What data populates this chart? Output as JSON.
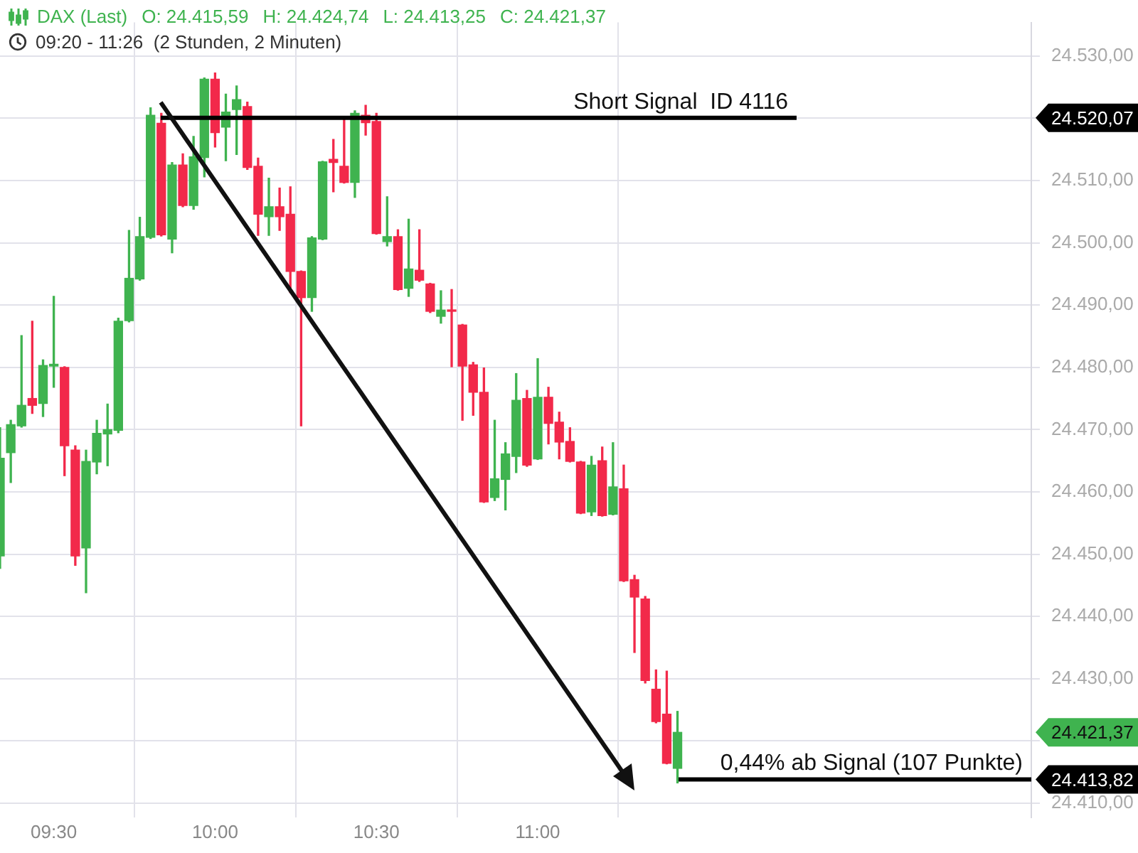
{
  "chart_data": {
    "type": "candlestick",
    "title": "DAX (Last)",
    "subtitle": "09:20 - 11:26  (2 Stunden, 2 Minuten)",
    "annotations": [
      "O: 24.415,59",
      "H: 24.424,74",
      "L: 24.413,25",
      "C: 24.421,37",
      "24.520,07",
      "24.421,37",
      "24.413,82"
    ],
    "x": [
      9.3333,
      9.3667,
      9.4,
      9.4333,
      9.4667,
      9.5,
      9.5333,
      9.5667,
      9.6,
      9.6333,
      9.6667,
      9.7,
      9.7333,
      9.7667,
      9.8,
      9.8333,
      9.8667,
      9.9,
      9.9333,
      9.9667,
      10,
      10.0333,
      10.0667,
      10.1,
      10.1333,
      10.1667,
      10.2,
      10.2333,
      10.2667,
      10.3,
      10.3333,
      10.3667,
      10.4,
      10.4333,
      10.4667,
      10.5,
      10.5333,
      10.5667,
      10.6,
      10.6333,
      10.6667,
      10.7,
      10.7333,
      10.7667,
      10.8,
      10.8333,
      10.8667,
      10.9,
      10.9333,
      10.9667,
      11,
      11.0333,
      11.0667,
      11.1,
      11.1333,
      11.1667,
      11.2,
      11.2333,
      11.2667,
      11.3,
      11.3333,
      11.3667,
      11.4,
      11.4333
    ],
    "ohlc": [
      [
        24449.7,
        24470.3,
        24447.7,
        24465.4
      ],
      [
        24466.3,
        24471.5,
        24461.5,
        24470.8
      ],
      [
        24470.6,
        24485.1,
        24470.4,
        24473.9
      ],
      [
        24475.0,
        24487.4,
        24472.6,
        24473.9
      ],
      [
        24474.2,
        24481.2,
        24472.1,
        24480.3
      ],
      [
        24480.2,
        24491.4,
        24476.8,
        24480.5
      ],
      [
        24480.0,
        24480.1,
        24462.6,
        24467.4
      ],
      [
        24466.7,
        24467.4,
        24448.2,
        24449.7
      ],
      [
        24451.0,
        24466.7,
        24443.8,
        24464.9
      ],
      [
        24464.8,
        24471.5,
        24462.9,
        24469.4
      ],
      [
        24469.3,
        24474.1,
        24464.2,
        24470.0
      ],
      [
        24469.9,
        24487.9,
        24469.5,
        24487.4
      ],
      [
        24487.5,
        24502.0,
        24487.3,
        24494.3
      ],
      [
        24494.2,
        24504.1,
        24494.0,
        24501.0
      ],
      [
        24500.9,
        24521.7,
        24500.7,
        24520.5
      ],
      [
        24519.2,
        24520.8,
        24501.1,
        24501.3
      ],
      [
        24500.6,
        24512.9,
        24498.4,
        24512.5
      ],
      [
        24512.5,
        24514.3,
        24505.8,
        24506.0
      ],
      [
        24506.0,
        24517.1,
        24505.4,
        24513.8
      ],
      [
        24513.7,
        24526.5,
        24510.6,
        24526.3
      ],
      [
        24526.3,
        24527.3,
        24515.4,
        24517.7
      ],
      [
        24518.6,
        24523.9,
        24513.2,
        24521.0
      ],
      [
        24521.4,
        24525.2,
        24514.2,
        24523.0
      ],
      [
        24521.9,
        24522.6,
        24511.8,
        24512.1
      ],
      [
        24512.3,
        24513.6,
        24501.2,
        24504.6
      ],
      [
        24504.2,
        24510.4,
        24501.2,
        24505.8
      ],
      [
        24505.8,
        24508.8,
        24502.0,
        24504.2
      ],
      [
        24504.6,
        24509.0,
        24492.0,
        24495.4
      ],
      [
        24495.4,
        24495.5,
        24470.6,
        24491.2
      ],
      [
        24491.2,
        24501.0,
        24489.0,
        24500.8
      ],
      [
        24500.6,
        24513.1,
        24500.5,
        24513.0
      ],
      [
        24513.4,
        24516.6,
        24508.2,
        24512.9
      ],
      [
        24512.3,
        24519.9,
        24509.6,
        24509.7
      ],
      [
        24509.7,
        24521.2,
        24507.3,
        24520.8
      ],
      [
        24520.5,
        24522.1,
        24517.3,
        24519.3
      ],
      [
        24519.5,
        24520.8,
        24501.4,
        24501.5
      ],
      [
        24500.2,
        24507.4,
        24499.5,
        24501.0
      ],
      [
        24501.0,
        24502.1,
        24492.4,
        24492.5
      ],
      [
        24492.7,
        24503.8,
        24491.4,
        24495.8
      ],
      [
        24495.6,
        24502.1,
        24493.8,
        24494.0
      ],
      [
        24493.4,
        24493.5,
        24488.8,
        24489.0
      ],
      [
        24488.2,
        24492.3,
        24487.1,
        24489.2
      ],
      [
        24489.2,
        24492.5,
        24480.1,
        24489.0
      ],
      [
        24486.8,
        24486.9,
        24471.5,
        24480.2
      ],
      [
        24480.4,
        24480.8,
        24472.3,
        24476.0
      ],
      [
        24476.0,
        24479.9,
        24458.3,
        24458.4
      ],
      [
        24459.1,
        24471.5,
        24458.6,
        24462.1
      ],
      [
        24462.0,
        24467.9,
        24457.1,
        24466.1
      ],
      [
        24465.7,
        24479.0,
        24463.1,
        24474.7
      ],
      [
        24475.0,
        24476.3,
        24464.1,
        24464.3
      ],
      [
        24465.3,
        24481.4,
        24465.2,
        24475.2
      ],
      [
        24475.2,
        24476.8,
        24467.7,
        24471.0
      ],
      [
        24471.2,
        24472.8,
        24465.3,
        24468.0
      ],
      [
        24468.1,
        24470.3,
        24464.8,
        24464.9
      ],
      [
        24464.8,
        24464.9,
        24456.5,
        24456.6
      ],
      [
        24456.8,
        24465.7,
        24456.2,
        24464.3
      ],
      [
        24465.0,
        24467.2,
        24456.1,
        24456.2
      ],
      [
        24456.4,
        24467.9,
        24456.3,
        24460.8
      ],
      [
        24460.5,
        24464.3,
        24445.6,
        24445.7
      ],
      [
        24445.9,
        24446.6,
        24434.2,
        24443.1
      ],
      [
        24442.8,
        24443.2,
        24429.3,
        24429.7
      ],
      [
        24428.3,
        24431.4,
        24422.9,
        24423.1
      ],
      [
        24424.3,
        24431.2,
        24416.3,
        24416.4
      ],
      [
        24415.59,
        24424.74,
        24413.25,
        24421.37
      ]
    ],
    "colors": [
      "#3fb34f",
      "#3fb34f",
      "#3fb34f",
      "#f2294a",
      "#3fb34f",
      "#3fb34f",
      "#f2294a",
      "#f2294a",
      "#3fb34f",
      "#3fb34f",
      "#3fb34f",
      "#3fb34f",
      "#3fb34f",
      "#3fb34f",
      "#3fb34f",
      "#f2294a",
      "#3fb34f",
      "#f2294a",
      "#3fb34f",
      "#3fb34f",
      "#f2294a",
      "#3fb34f",
      "#3fb34f",
      "#f2294a",
      "#f2294a",
      "#3fb34f",
      "#f2294a",
      "#f2294a",
      "#f2294a",
      "#3fb34f",
      "#3fb34f",
      "#f2294a",
      "#f2294a",
      "#3fb34f",
      "#f2294a",
      "#f2294a",
      "#3fb34f",
      "#f2294a",
      "#3fb34f",
      "#f2294a",
      "#f2294a",
      "#3fb34f",
      "#f2294a",
      "#f2294a",
      "#f2294a",
      "#f2294a",
      "#3fb34f",
      "#3fb34f",
      "#3fb34f",
      "#f2294a",
      "#3fb34f",
      "#f2294a",
      "#f2294a",
      "#f2294a",
      "#f2294a",
      "#3fb34f",
      "#f2294a",
      "#3fb34f",
      "#f2294a",
      "#f2294a",
      "#f2294a",
      "#f2294a",
      "#f2294a",
      "#3fb34f"
    ],
    "xlim": [
      9.3333,
      12.53
    ],
    "xticks": [
      {
        "value": 9.5,
        "label": "09:30"
      },
      {
        "value": 10,
        "label": "10:00"
      },
      {
        "value": 10.5,
        "label": "10:30"
      },
      {
        "value": 11,
        "label": "11:00"
      }
    ],
    "ylim": [
      24407.7,
      24535.4
    ],
    "yticks": [
      {
        "value": 24410,
        "label": "24.410,00"
      },
      {
        "value": 24420,
        "label": null
      },
      {
        "value": 24430,
        "label": "24.430,00"
      },
      {
        "value": 24440,
        "label": "24.440,00"
      },
      {
        "value": 24450,
        "label": "24.450,00"
      },
      {
        "value": 24460,
        "label": "24.460,00"
      },
      {
        "value": 24470,
        "label": "24.470,00"
      },
      {
        "value": 24480,
        "label": "24.480,00"
      },
      {
        "value": 24490,
        "label": "24.490,00"
      },
      {
        "value": 24500,
        "label": "24.500,00"
      },
      {
        "value": 24510,
        "label": "24.510,00"
      },
      {
        "value": 24520,
        "label": null
      },
      {
        "value": 24530,
        "label": "24.530,00"
      }
    ],
    "ref_lines": [
      {
        "axis": "y",
        "value": 24520.07,
        "label": "Short Signal  ID 4116",
        "color": "#000000"
      },
      {
        "axis": "y",
        "value": 24413.82,
        "label": "0,44% ab Signal (107 Punkte)",
        "color": "#000000"
      }
    ],
    "grid": true,
    "legend": false
  }
}
